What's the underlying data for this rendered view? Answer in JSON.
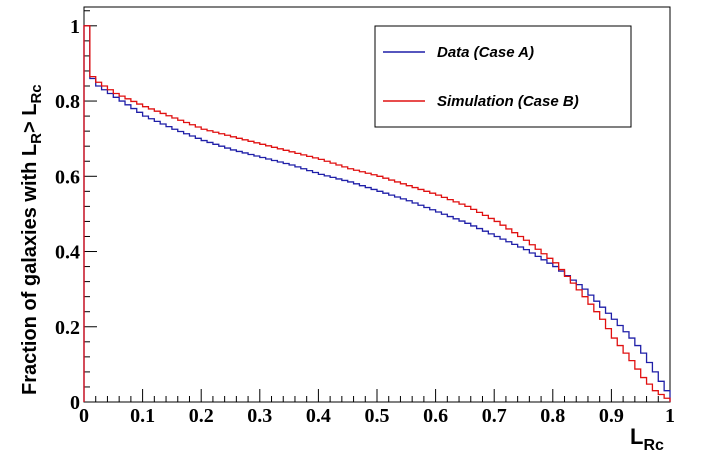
{
  "chart_data": {
    "type": "line",
    "xlabel": {
      "main": "L",
      "sub": "Rc"
    },
    "ylabel": {
      "prefix": "Fraction of galaxies with L",
      "sub1": "R",
      "mid": "> L",
      "sub2": "Rc"
    },
    "xlim": [
      0,
      1
    ],
    "ylim": [
      0,
      1.05
    ],
    "x_ticks": [
      "0",
      "0.1",
      "0.2",
      "0.3",
      "0.4",
      "0.5",
      "0.6",
      "0.7",
      "0.8",
      "0.9",
      "1"
    ],
    "y_ticks": [
      "0",
      "0.2",
      "0.4",
      "0.6",
      "0.8",
      "1"
    ],
    "grid": false,
    "legend_position": "top-right",
    "series": [
      {
        "name": "Data (Case A)",
        "color": "#1f1fa8",
        "x": [
          0,
          0.01,
          0.02,
          0.05,
          0.1,
          0.15,
          0.2,
          0.25,
          0.3,
          0.35,
          0.4,
          0.45,
          0.5,
          0.55,
          0.6,
          0.65,
          0.7,
          0.75,
          0.8,
          0.85,
          0.9,
          0.93,
          0.95,
          0.97,
          0.99,
          1.0
        ],
        "y": [
          1.0,
          0.86,
          0.84,
          0.81,
          0.76,
          0.725,
          0.695,
          0.67,
          0.65,
          0.63,
          0.605,
          0.585,
          0.56,
          0.535,
          0.505,
          0.475,
          0.44,
          0.405,
          0.36,
          0.3,
          0.22,
          0.17,
          0.13,
          0.08,
          0.03,
          0.0
        ]
      },
      {
        "name": "Simulation (Case B)",
        "color": "#e01010",
        "x": [
          0,
          0.01,
          0.02,
          0.05,
          0.1,
          0.15,
          0.2,
          0.25,
          0.3,
          0.35,
          0.4,
          0.45,
          0.5,
          0.55,
          0.6,
          0.65,
          0.7,
          0.75,
          0.8,
          0.85,
          0.88,
          0.9,
          0.93,
          0.95,
          0.97,
          0.99,
          1.0
        ],
        "y": [
          1.0,
          0.865,
          0.85,
          0.82,
          0.785,
          0.755,
          0.725,
          0.705,
          0.685,
          0.665,
          0.645,
          0.62,
          0.6,
          0.575,
          0.55,
          0.52,
          0.48,
          0.43,
          0.37,
          0.28,
          0.22,
          0.17,
          0.11,
          0.065,
          0.03,
          0.01,
          0.0
        ]
      }
    ]
  }
}
